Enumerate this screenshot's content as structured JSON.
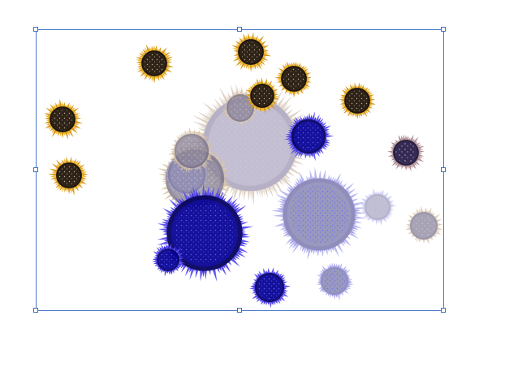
{
  "canvas": {
    "background": "#ffffff",
    "selection_color": "#3e6fc4",
    "handles": [
      "top-left",
      "top-center",
      "top-right",
      "middle-left",
      "middle-right",
      "bottom-left",
      "bottom-center",
      "bottom-right"
    ]
  },
  "palette": {
    "gold_petal": "#f1b92d",
    "gold_petal_dark": "#d79a1f",
    "gold_center": "#2e2316",
    "blue_petal": "#3b2fe0",
    "blue_center": "#0a0596",
    "lavender_petal": "#9b9ae8",
    "lavender_center": "#8f8db8",
    "beige_petal": "#e6dccf",
    "grey_center": "#a9a4b5",
    "mauve_petal": "#b8959a",
    "mauve_center": "#2a1f4a"
  },
  "objects": [
    {
      "name": "sunflower-gold-1",
      "style": "gold"
    },
    {
      "name": "sunflower-gold-2",
      "style": "gold"
    },
    {
      "name": "sunflower-gold-3",
      "style": "gold"
    },
    {
      "name": "sunflower-gold-4",
      "style": "gold"
    },
    {
      "name": "sunflower-gold-5",
      "style": "gold"
    },
    {
      "name": "sunflower-gold-6",
      "style": "gold"
    },
    {
      "name": "sunflower-gold-7",
      "style": "gold"
    },
    {
      "name": "sunflower-large-beige",
      "style": "beige"
    },
    {
      "name": "sunflower-faded-1",
      "style": "faded"
    },
    {
      "name": "sunflower-faded-2",
      "style": "faded"
    },
    {
      "name": "sunflower-faded-3",
      "style": "faded"
    },
    {
      "name": "sunflower-blue-1",
      "style": "blue"
    },
    {
      "name": "sunflower-blue-large",
      "style": "blue"
    },
    {
      "name": "sunflower-blue-small",
      "style": "blue"
    },
    {
      "name": "sunflower-blue-2",
      "style": "blue"
    },
    {
      "name": "sunflower-lavender-large",
      "style": "lavender"
    },
    {
      "name": "sunflower-lavender-small",
      "style": "lavender"
    },
    {
      "name": "sunflower-lavender-pale",
      "style": "pale"
    },
    {
      "name": "sunflower-mauve",
      "style": "mauve"
    },
    {
      "name": "sunflower-beige-small",
      "style": "beige-small"
    },
    {
      "name": "sunflower-faded-purple",
      "style": "faded-purple"
    }
  ]
}
